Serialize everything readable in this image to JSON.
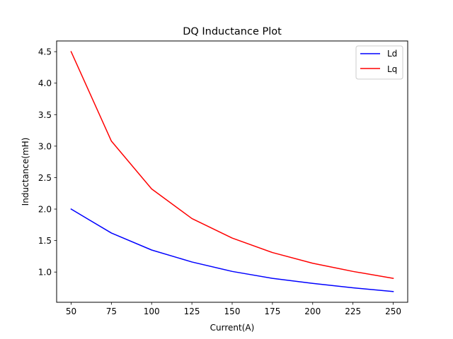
{
  "chart_data": {
    "type": "line",
    "title": "DQ Inductance Plot",
    "xlabel": "Current(A)",
    "ylabel": "Inductance(mH)",
    "x": [
      50,
      75,
      100,
      125,
      150,
      175,
      200,
      225,
      250
    ],
    "xticks": [
      "50",
      "75",
      "100",
      "125",
      "150",
      "175",
      "200",
      "225",
      "250"
    ],
    "yticks": [
      "1.0",
      "1.5",
      "2.0",
      "2.5",
      "3.0",
      "3.5",
      "4.0",
      "4.5"
    ],
    "xlim": [
      41,
      259
    ],
    "ylim": [
      0.52,
      4.67
    ],
    "grid": false,
    "legend_position": "top-right",
    "series": [
      {
        "name": "Ld",
        "color": "#0000ff",
        "values": [
          2.0,
          1.62,
          1.35,
          1.16,
          1.01,
          0.9,
          0.82,
          0.75,
          0.69
        ]
      },
      {
        "name": "Lq",
        "color": "#ff0000",
        "values": [
          4.5,
          3.08,
          2.32,
          1.85,
          1.54,
          1.31,
          1.14,
          1.01,
          0.9
        ]
      }
    ]
  }
}
